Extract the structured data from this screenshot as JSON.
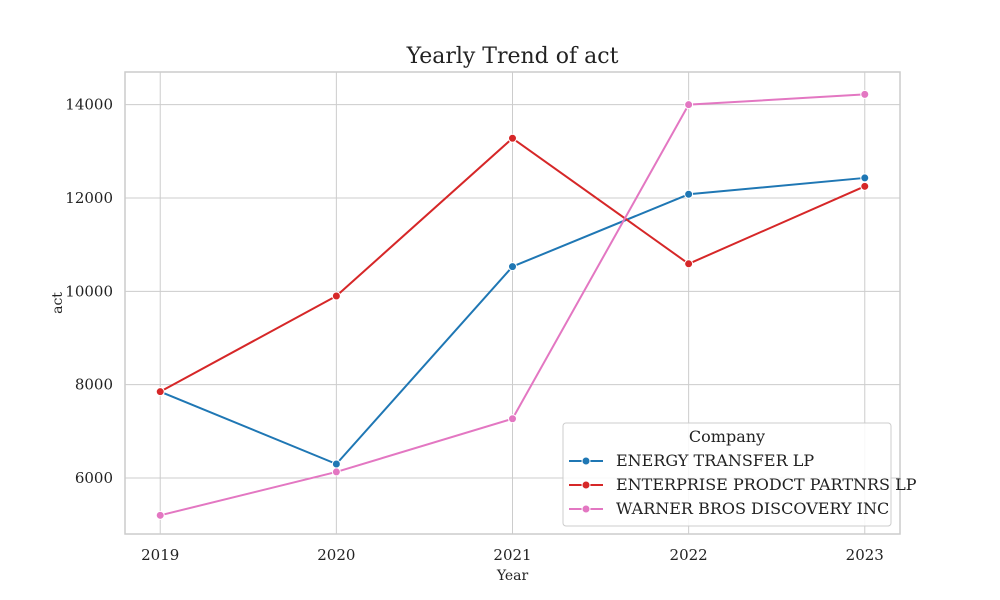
{
  "chart_data": {
    "type": "line",
    "title": "Yearly Trend of act",
    "xlabel": "Year",
    "ylabel": "act",
    "x": [
      2019,
      2020,
      2021,
      2022,
      2023
    ],
    "x_tick_labels": [
      "2019",
      "2020",
      "2021",
      "2022",
      "2023"
    ],
    "xlim": [
      2018.8,
      2023.2
    ],
    "ylim": [
      4800,
      14700
    ],
    "y_ticks": [
      6000,
      8000,
      10000,
      12000,
      14000
    ],
    "y_tick_labels": [
      "6000",
      "8000",
      "10000",
      "12000",
      "14000"
    ],
    "grid": true,
    "legend": {
      "title": "Company",
      "placement": "lower-right"
    },
    "series": [
      {
        "name": "ENERGY TRANSFER LP",
        "color": "#1f77b4",
        "values": [
          7850,
          6300,
          10530,
          12080,
          12430
        ]
      },
      {
        "name": "ENTERPRISE PRODCT PARTNRS LP",
        "color": "#d62728",
        "values": [
          7850,
          9900,
          13280,
          10590,
          12250
        ]
      },
      {
        "name": "WARNER BROS DISCOVERY INC",
        "color": "#e377c2",
        "values": [
          5200,
          6130,
          7270,
          14000,
          14220
        ]
      }
    ]
  }
}
